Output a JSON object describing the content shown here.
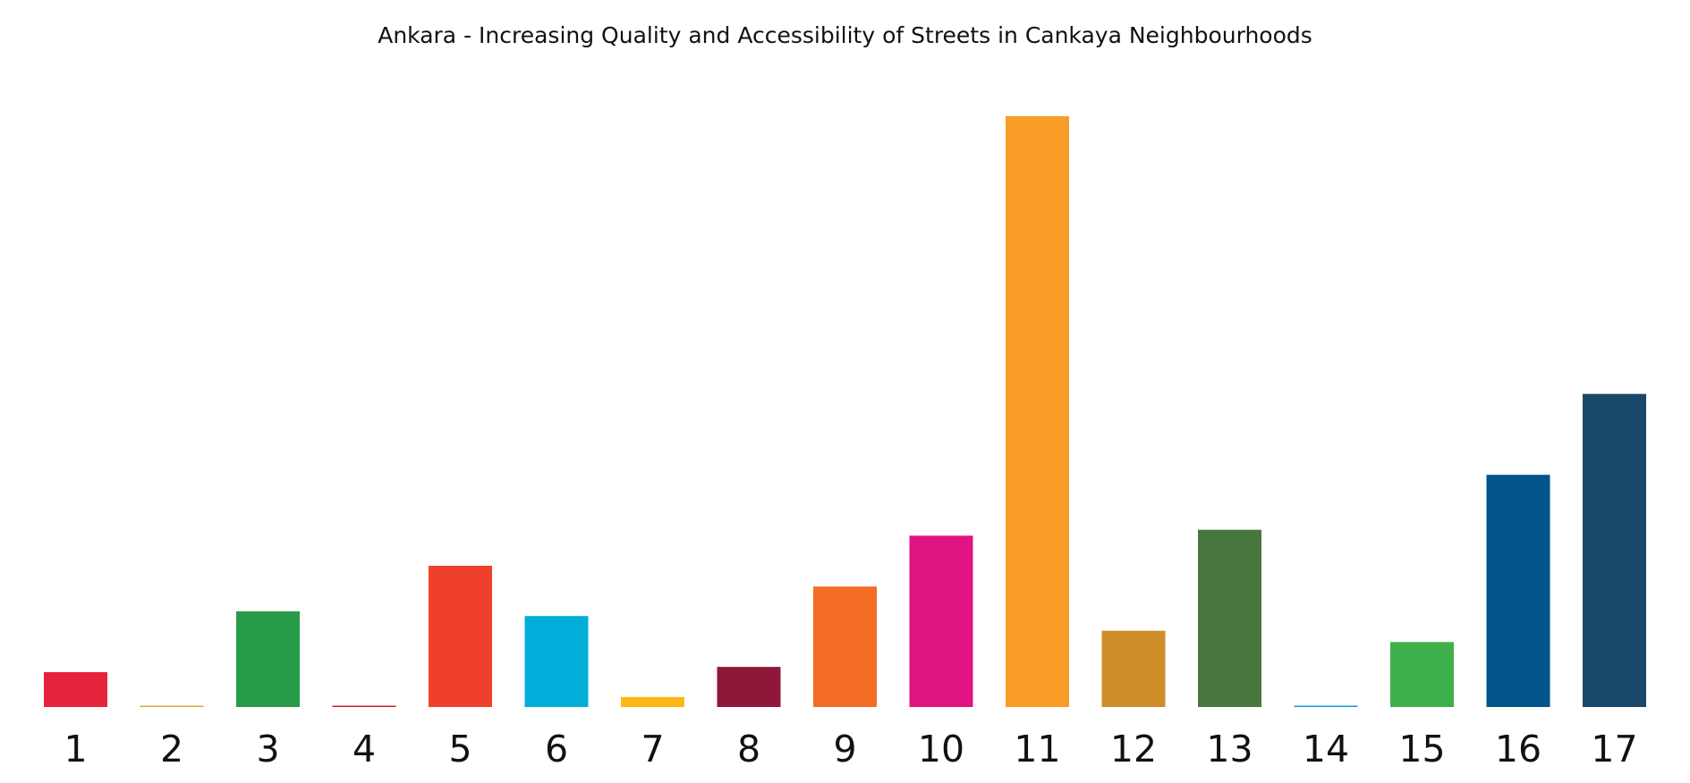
{
  "chart_data": {
    "type": "bar",
    "title": "Ankara - Increasing Quality and Accessibility of Streets in Cankaya Neighbourhoods",
    "xlabel": "",
    "ylabel": "",
    "y_axis_visible": false,
    "grid": false,
    "legend": "none",
    "value_units": "relative (tallest bar = 100), estimated from bar heights",
    "ylim": [
      0,
      100
    ],
    "categories": [
      "1",
      "2",
      "3",
      "4",
      "5",
      "6",
      "7",
      "8",
      "9",
      "10",
      "11",
      "12",
      "13",
      "14",
      "15",
      "16",
      "17"
    ],
    "values": [
      5.9,
      0.2,
      16.2,
      0.2,
      23.9,
      15.4,
      1.7,
      6.8,
      20.4,
      29.0,
      100,
      12.9,
      30.0,
      0.2,
      11.0,
      39.3,
      53.0
    ],
    "colors": [
      "#E5243B",
      "#DDA63A",
      "#279B48",
      "#C5192D",
      "#EF402B",
      "#00AED9",
      "#FDB713",
      "#8F1838",
      "#F36D25",
      "#E11484",
      "#F99D26",
      "#CF8D2A",
      "#48773E",
      "#0A97D9",
      "#3EB049",
      "#02558B",
      "#19486A"
    ]
  }
}
